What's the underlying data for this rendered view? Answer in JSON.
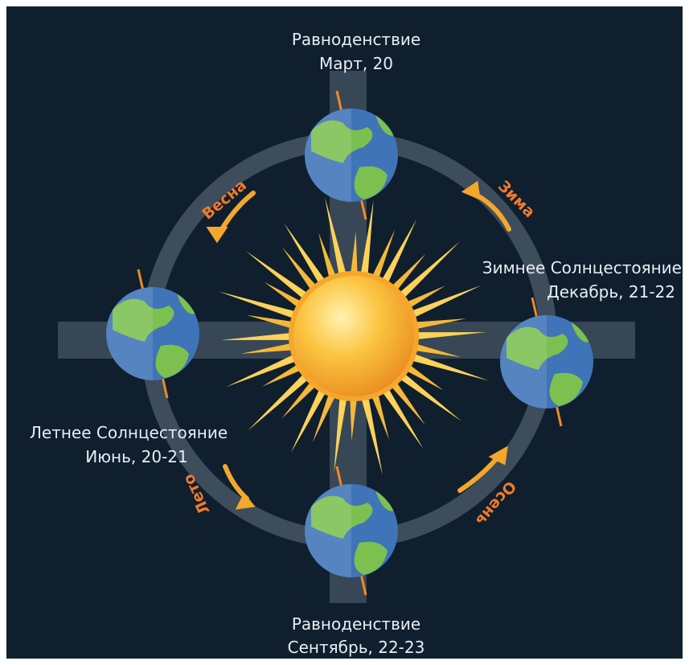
{
  "labels": [
    {
      "title": "Равноденствие",
      "date": "Март, 20"
    },
    {
      "title": "Зимнее Солнцестояние",
      "date": "Декабрь, 21-22"
    },
    {
      "title": "Летнее Солнцестояние",
      "date": "Июнь, 20-21"
    },
    {
      "title": "Равноденствие",
      "date": "Сентябрь, 22-23"
    }
  ],
  "seasons": [
    "Весна",
    "Зима",
    "Лето",
    "Осень"
  ]
}
